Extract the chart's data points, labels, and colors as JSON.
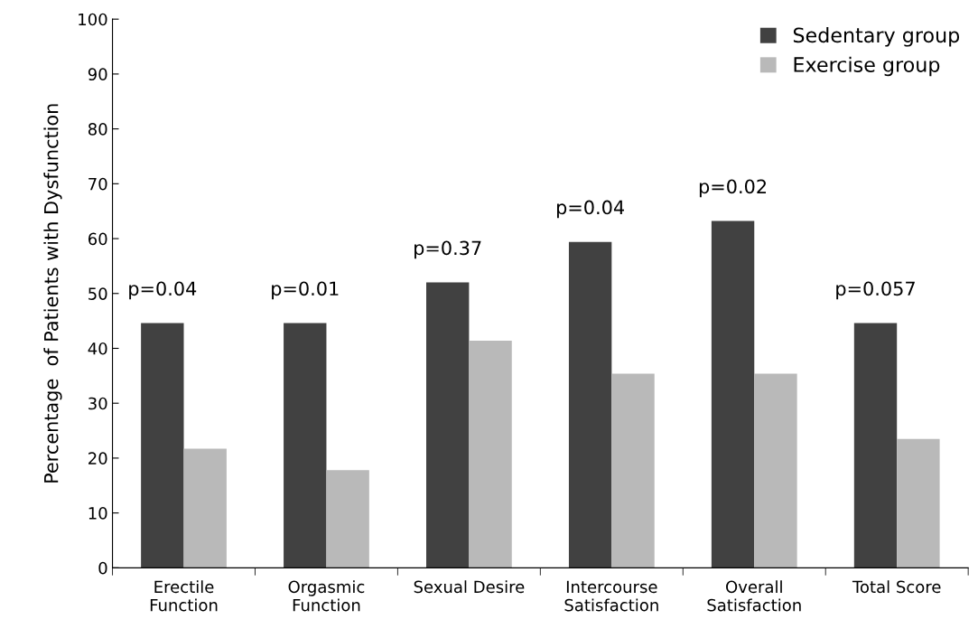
{
  "chart_data": {
    "type": "bar",
    "ylabel": "Percentage  of Patients with Dysfunction",
    "categories": [
      "Erectile\nFunction",
      "Orgasmic\nFunction",
      "Sexual Desire",
      "Intercourse\nSatisfaction",
      "Overall\nSatisfaction",
      "Total Score"
    ],
    "series": [
      {
        "name": "Sedentary group",
        "color": "#414141",
        "values": [
          44.6,
          44.6,
          52.0,
          59.4,
          63.2,
          44.6
        ]
      },
      {
        "name": "Exercise group",
        "color": "#b9b9b9",
        "values": [
          21.7,
          17.8,
          41.4,
          35.4,
          35.4,
          23.5
        ]
      }
    ],
    "ylim": [
      0,
      100
    ],
    "yticks": [
      0,
      10,
      20,
      30,
      40,
      50,
      60,
      70,
      80,
      90,
      100
    ],
    "annotations": [
      "p=0.04",
      "p=0.01",
      "p=0.37",
      "p=0.04",
      "p=0.02",
      "p=0.057"
    ],
    "legend": "top right",
    "grid": false
  }
}
